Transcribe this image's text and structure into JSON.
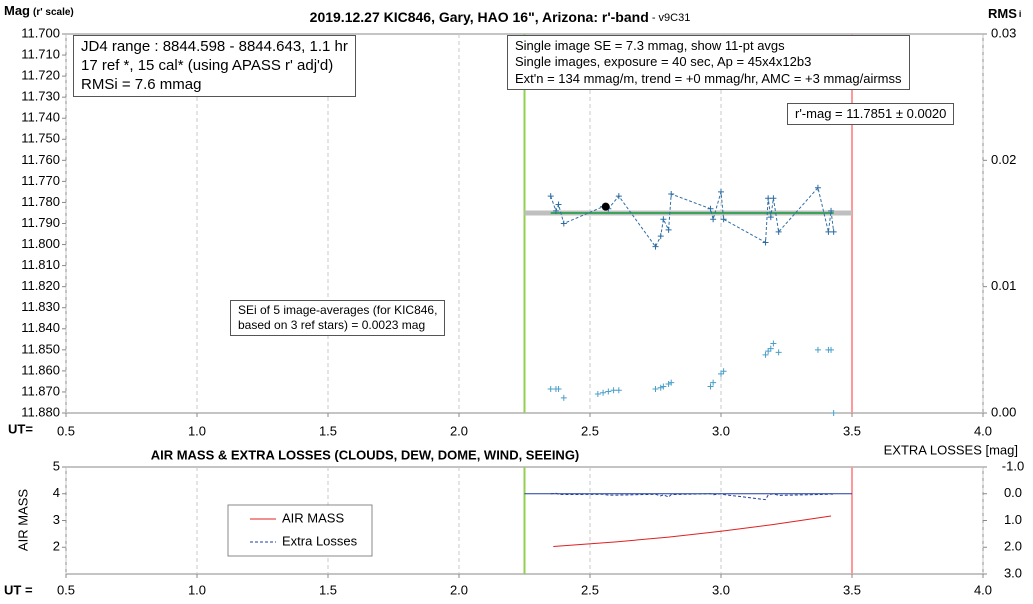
{
  "chart_data": [
    {
      "type": "scatter",
      "title": "2019.12.27 KIC846, Gary, HAO 16\", Arizona: r'-band",
      "version": " - v9C31",
      "y_label": "Mag",
      "y_label_note": "(r' scale)",
      "y2_label": "RMS",
      "y2_label_sub": "i",
      "x_label": "UT=",
      "xlim": [
        0.5,
        4.0
      ],
      "xticks": [
        0.5,
        {
          "value": 1,
          "label": "1.0"
        },
        1.5,
        {
          "value": 2,
          "label": "2.0"
        },
        2.5,
        {
          "value": 3,
          "label": "3.0"
        },
        3.5,
        {
          "value": 4,
          "label": "4.0"
        }
      ],
      "ylim": [
        11.7,
        11.88
      ],
      "y_inverted": true,
      "yticks": [
        {
          "value": 11.7,
          "label": "11.700"
        },
        {
          "value": 11.71,
          "label": "11.710"
        },
        {
          "value": 11.72,
          "label": "11.720"
        },
        {
          "value": 11.73,
          "label": "11.730"
        },
        {
          "value": 11.74,
          "label": "11.740"
        },
        {
          "value": 11.75,
          "label": "11.750"
        },
        {
          "value": 11.76,
          "label": "11.760"
        },
        {
          "value": 11.77,
          "label": "11.770"
        },
        {
          "value": 11.78,
          "label": "11.780"
        },
        {
          "value": 11.79,
          "label": "11.790"
        },
        {
          "value": 11.8,
          "label": "11.800"
        },
        {
          "value": 11.81,
          "label": "11.810"
        },
        {
          "value": 11.82,
          "label": "11.820"
        },
        {
          "value": 11.83,
          "label": "11.830"
        },
        {
          "value": 11.84,
          "label": "11.840"
        },
        {
          "value": 11.85,
          "label": "11.850"
        },
        {
          "value": 11.86,
          "label": "11.860"
        },
        {
          "value": 11.87,
          "label": "11.870"
        },
        {
          "value": 11.88,
          "label": "11.880"
        }
      ],
      "y2lim": [
        0,
        0.03
      ],
      "y2ticks": [
        {
          "value": 0,
          "label": "0.00"
        },
        {
          "value": 0.01,
          "label": "0.01"
        },
        {
          "value": 0.02,
          "label": "0.02"
        },
        {
          "value": 0.03,
          "label": "0.03"
        }
      ],
      "grid": "x",
      "vlines": [
        {
          "x": 2.25,
          "color": "#92d050"
        },
        {
          "x": 3.5,
          "color": "#ff9999"
        }
      ],
      "series": [
        {
          "color": "#bfbfbf",
          "line": "solid",
          "width": 5,
          "x": [
            2.25,
            3.5
          ],
          "values": [
            11.785,
            11.785
          ]
        },
        {
          "color": "#3aa55a",
          "line": "solid",
          "width": 2,
          "x": [
            2.35,
            3.43
          ],
          "values": [
            11.785,
            11.785
          ]
        },
        {
          "color": "#2e6da4",
          "line": "dashed",
          "width": 1,
          "marker": "+",
          "x": [
            2.35,
            2.37,
            2.38,
            2.4,
            2.55,
            2.57,
            2.61,
            2.75,
            2.77,
            2.78,
            2.8,
            2.81,
            2.96,
            2.97,
            3.0,
            3.01,
            3.17,
            3.18,
            3.19,
            3.2,
            3.22,
            3.37,
            3.41,
            3.42,
            3.43
          ],
          "values": [
            11.777,
            11.784,
            11.781,
            11.79,
            11.782,
            11.783,
            11.777,
            11.801,
            11.796,
            11.788,
            11.793,
            11.776,
            11.783,
            11.788,
            11.775,
            11.788,
            11.799,
            11.778,
            11.787,
            11.778,
            11.794,
            11.773,
            11.794,
            11.784,
            11.794
          ]
        },
        {
          "color": "#000000",
          "marker": "dot",
          "x": [
            2.56
          ],
          "values": [
            11.782
          ]
        },
        {
          "color": "#4a9fc8",
          "marker": "+",
          "axis": "y2",
          "x": [
            2.35,
            2.37,
            2.38,
            2.4,
            2.53,
            2.55,
            2.57,
            2.59,
            2.61,
            2.75,
            2.77,
            2.78,
            2.8,
            2.81,
            2.96,
            2.97,
            3.0,
            3.01,
            3.17,
            3.18,
            3.19,
            3.2,
            3.22,
            3.37,
            3.41,
            3.42,
            3.43
          ],
          "values": [
            0.0019,
            0.0019,
            0.0019,
            0.0012,
            0.0015,
            0.0016,
            0.0017,
            0.0018,
            0.0018,
            0.0019,
            0.002,
            0.0021,
            0.0023,
            0.0024,
            0.0021,
            0.0024,
            0.0031,
            0.0033,
            0.0046,
            0.0049,
            0.0051,
            0.0055,
            0.0048,
            0.005,
            0.005,
            0.005,
            0.0
          ]
        }
      ],
      "annotations": [
        {
          "lines": [
            "JD4 range : 8844.598 - 8844.643,  1.1  hr",
            "17 ref *, 15 cal* (using APASS r' adj'd)",
            "RMSi = 7.6 mmag"
          ]
        },
        {
          "lines": [
            "Single image SE = 7.3 mmag, show  11-pt avgs",
            "Single images, exposure = 40 sec, Ap = 45x4x12b3",
            "Ext'n = 134 mmag/m, trend =  +0 mmag/hr, AMC = +3 mmag/airmss"
          ]
        },
        {
          "lines": [
            "r'-mag = 11.7851 ± 0.0020"
          ]
        },
        {
          "lines": [
            "SEi of 5 image-averages (for KIC846,",
            "based on 3 ref stars) = 0.0023 mag"
          ]
        }
      ]
    },
    {
      "type": "line",
      "title": "AIR MASS & EXTRA LOSSES (CLOUDS, DEW, DOME, WIND, SEEING)",
      "y_label": "AIR MASS",
      "y2_label": "EXTRA LOSSES [mag]",
      "x_label": "UT =",
      "xlim": [
        0.5,
        4.0
      ],
      "xticks": [
        0.5,
        {
          "value": 1,
          "label": "1.0"
        },
        1.5,
        {
          "value": 2,
          "label": "2.0"
        },
        2.5,
        {
          "value": 3,
          "label": "3.0"
        },
        3.5,
        {
          "value": 4,
          "label": "4.0"
        }
      ],
      "ylim": [
        1,
        5
      ],
      "yticks": [
        2,
        3,
        4,
        5
      ],
      "y2lim": [
        -1,
        3
      ],
      "y2_inverted": true,
      "y2ticks": [
        {
          "value": -1,
          "label": "-1.0"
        },
        {
          "value": 0,
          "label": "0.0"
        },
        {
          "value": 1,
          "label": "1.0"
        },
        {
          "value": 2,
          "label": "2.0"
        },
        {
          "value": 3,
          "label": "3.0"
        }
      ],
      "grid": "x",
      "vlines": [
        {
          "x": 2.25,
          "color": "#92d050"
        },
        {
          "x": 3.5,
          "color": "#ff9999"
        }
      ],
      "series": [
        {
          "color": "#1f3f9f",
          "line": "solid",
          "width": 1,
          "axis": "y2",
          "x": [
            2.25,
            3.5
          ],
          "values": [
            0,
            0
          ]
        },
        {
          "name": "AIR MASS",
          "color": "#e02020",
          "line": "solid",
          "width": 1,
          "x": [
            2.36,
            2.6,
            2.8,
            3.0,
            3.2,
            3.42
          ],
          "values": [
            2.03,
            2.2,
            2.38,
            2.6,
            2.85,
            3.17
          ]
        },
        {
          "name": "Extra Losses",
          "color": "#1f3f9f",
          "line": "dashed",
          "width": 1,
          "axis": "y2",
          "x": [
            2.35,
            2.37,
            2.38,
            2.4,
            2.55,
            2.57,
            2.61,
            2.75,
            2.77,
            2.78,
            2.8,
            2.81,
            2.96,
            2.97,
            3.0,
            3.01,
            3.17,
            3.18,
            3.19,
            3.2,
            3.22,
            3.37,
            3.41,
            3.42,
            3.43
          ],
          "values": [
            0.0,
            -0.02,
            0.02,
            0.03,
            0.02,
            0.05,
            0.05,
            0.02,
            0.08,
            0.04,
            0.12,
            0.03,
            0.0,
            0.04,
            0.0,
            0.03,
            0.22,
            0.05,
            0.02,
            0.0,
            0.06,
            0.03,
            0.02,
            0.0,
            0.06
          ]
        }
      ]
    }
  ]
}
